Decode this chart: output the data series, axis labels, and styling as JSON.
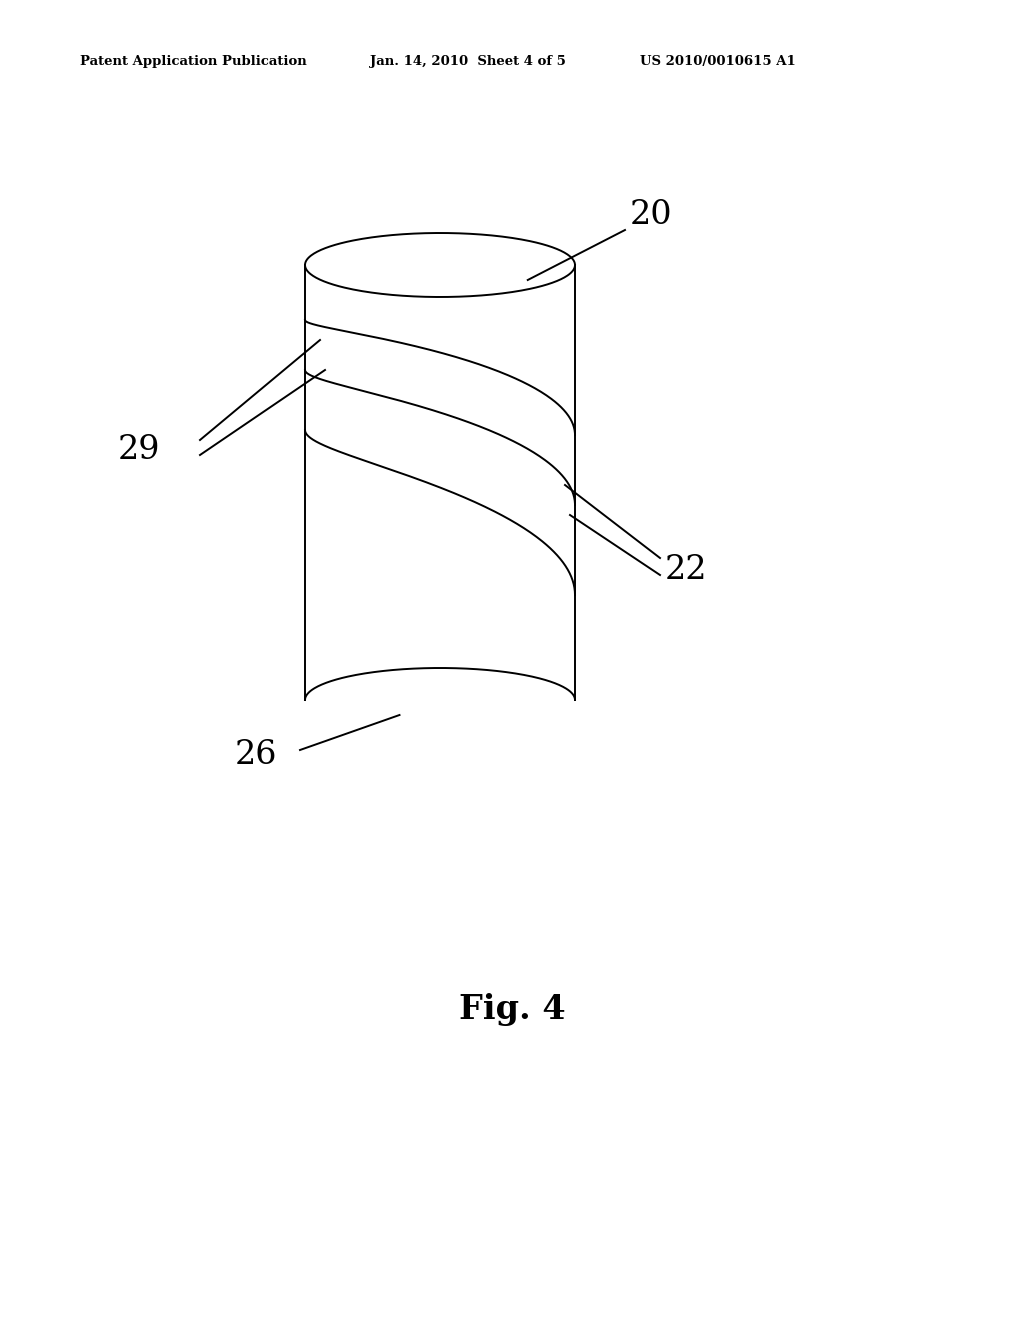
{
  "background_color": "#ffffff",
  "header_left": "Patent Application Publication",
  "header_middle": "Jan. 14, 2010  Sheet 4 of 5",
  "header_right": "US 2010/0010615 A1",
  "header_fontsize": 9.5,
  "fig_label": "Fig. 4",
  "fig_label_fontsize": 24,
  "label_20": "20",
  "label_22": "22",
  "label_26": "26",
  "label_29": "29",
  "label_fontsize": 24,
  "line_color": "#000000",
  "line_width": 1.4
}
